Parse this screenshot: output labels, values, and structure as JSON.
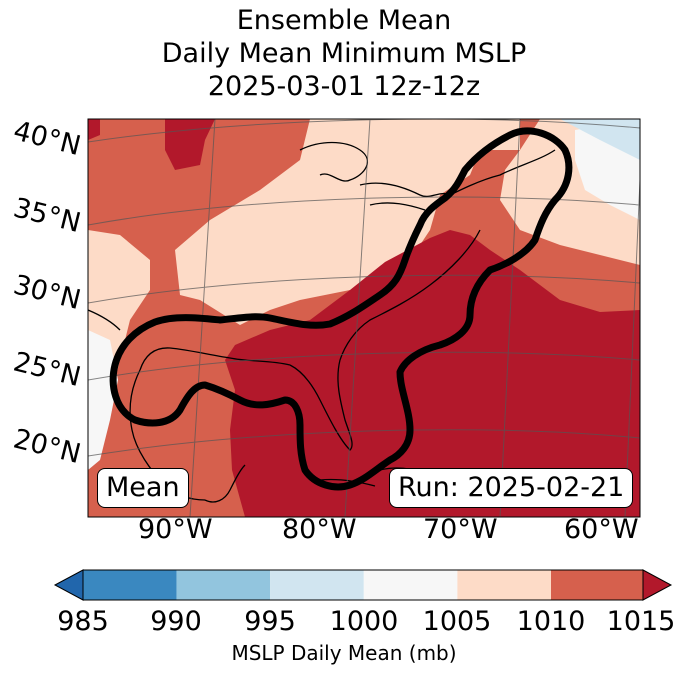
{
  "title": {
    "line1": "Ensemble Mean",
    "line2": "Daily Mean Minimum MSLP",
    "line3": "2025-03-01 12z-12z"
  },
  "map": {
    "lat_labels": [
      "40°N",
      "35°N",
      "30°N",
      "25°N",
      "20°N"
    ],
    "lon_labels": [
      "90°W",
      "80°W",
      "70°W",
      "60°W"
    ],
    "mean_box": "Mean",
    "run_box": "Run: 2025-02-21",
    "shading": {
      "variable": "MSLP daily mean",
      "units": "mb",
      "levels": [
        985,
        990,
        995,
        1000,
        1005,
        1010,
        1015
      ],
      "colors": [
        "#2c71b3",
        "#3a88c0",
        "#92c5de",
        "#d1e5f0",
        "#f7f7f7",
        "#fddbc7",
        "#d6604d",
        "#b2182b"
      ]
    },
    "contour": {
      "color": "#000000",
      "description": "ensemble low-pressure outline"
    }
  },
  "colorbar": {
    "ticks": [
      "985",
      "990",
      "995",
      "1000",
      "1005",
      "1010",
      "1015"
    ],
    "label": "MSLP Daily Mean (mb)",
    "extend": "both"
  }
}
